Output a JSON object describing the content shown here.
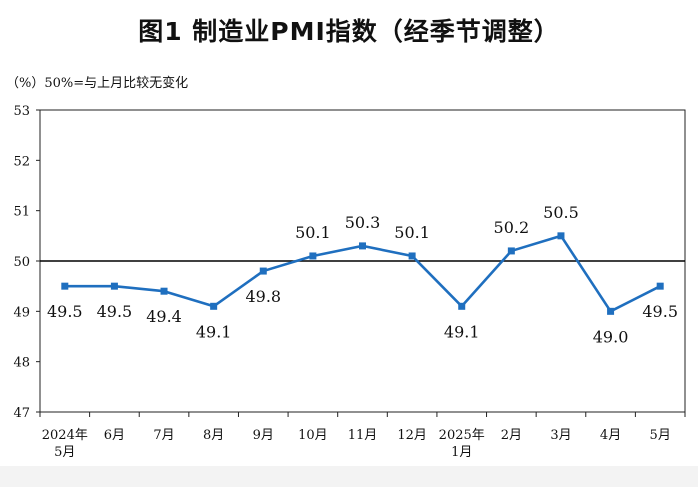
{
  "title": "图1  制造业PMI指数（经季节调整）",
  "unit_note": "（%）50%=与上月比较无变化",
  "colors": {
    "line": "#1f6fbf",
    "axis": "#222222",
    "reference_line": "#000000"
  },
  "chart_data": {
    "type": "line",
    "categories": [
      [
        "2024年",
        "5月"
      ],
      [
        "6月"
      ],
      [
        "7月"
      ],
      [
        "8月"
      ],
      [
        "9月"
      ],
      [
        "10月"
      ],
      [
        "11月"
      ],
      [
        "12月"
      ],
      [
        "2025年",
        "1月"
      ],
      [
        "2月"
      ],
      [
        "3月"
      ],
      [
        "4月"
      ],
      [
        "5月"
      ]
    ],
    "series": [
      {
        "values": [
          49.5,
          49.5,
          49.4,
          49.1,
          49.8,
          50.1,
          50.3,
          50.1,
          49.1,
          50.2,
          50.5,
          49.0,
          49.5
        ],
        "labels": [
          "49.5",
          "49.5",
          "49.4",
          "49.1",
          "49.8",
          "50.1",
          "50.3",
          "50.1",
          "49.1",
          "50.2",
          "50.5",
          "49.0",
          "49.5"
        ]
      }
    ],
    "ylim": [
      47,
      53
    ],
    "yticks": [
      "47",
      "48",
      "49",
      "50",
      "51",
      "52",
      "53"
    ],
    "reference_line": 50,
    "grid": false,
    "xlabel": "",
    "ylabel": ""
  }
}
